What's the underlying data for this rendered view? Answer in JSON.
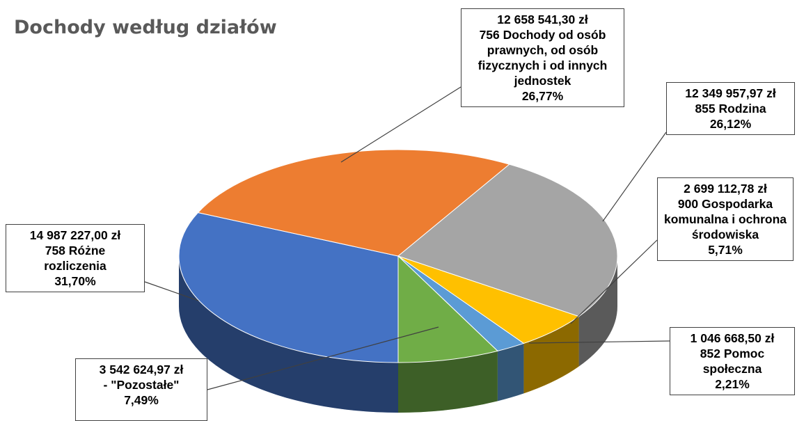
{
  "chart_data": {
    "type": "pie",
    "title": "Dochody według działów",
    "categories": [
      "758 Różne rozliczenia",
      "756 Dochody od osób prawnych, od osób fizycznych i od innych jednostek",
      "855 Rodzina",
      "900 Gospodarka komunalna i ochrona środowiska",
      "852 Pomoc społeczna",
      "- \"Pozostałe\""
    ],
    "values": [
      14987227.0,
      12658541.3,
      12349957.97,
      2699112.78,
      1046668.5,
      3542624.97
    ],
    "value_labels": [
      "14 987 227,00 zł",
      "12 658 541,30 zł",
      "12 349 957,97 zł",
      "2 699 112,78 zł",
      "1 046 668,50 zł",
      "3 542 624,97 zł"
    ],
    "percent_labels": [
      "31,70%",
      "26,77%",
      "26,12%",
      "5,71%",
      "2,21%",
      "7,49%"
    ],
    "colors": [
      "#4472c4",
      "#ed7d31",
      "#a5a5a5",
      "#ffc000",
      "#5b9bd5",
      "#70ad47"
    ]
  }
}
